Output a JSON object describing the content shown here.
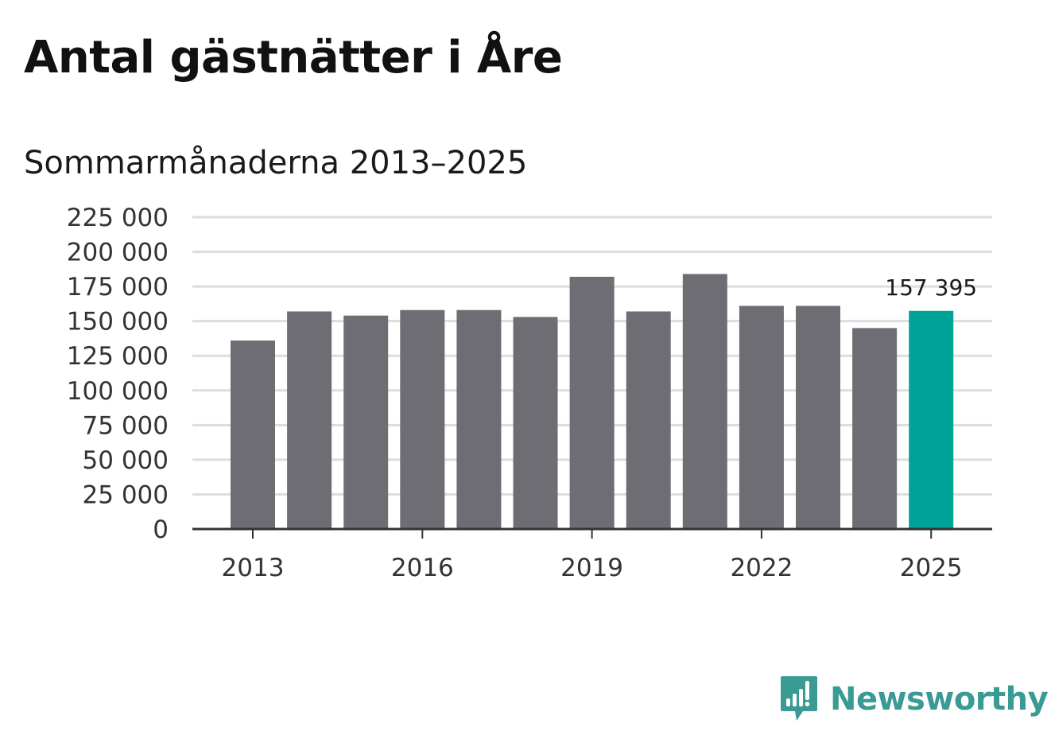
{
  "title": "Antal gästnätter i Åre",
  "subtitle": "Sommarmånaderna 2013–2025",
  "brand": {
    "name": "Newsworthy",
    "icon": "newsworthy-logo-icon",
    "color": "#3a9a94"
  },
  "colors": {
    "bar": "#6d6d73",
    "highlight": "#00a397",
    "grid": "#dddddd",
    "axis": "#333333"
  },
  "chart_data": {
    "type": "bar",
    "title": "Antal gästnätter i Åre",
    "subtitle": "Sommarmånaderna 2013–2025",
    "xlabel": "",
    "ylabel": "",
    "categories": [
      "2013",
      "2014",
      "2015",
      "2016",
      "2017",
      "2018",
      "2019",
      "2020",
      "2021",
      "2022",
      "2023",
      "2024",
      "2025"
    ],
    "values": [
      136000,
      157000,
      154000,
      158000,
      158000,
      153000,
      182000,
      157000,
      184000,
      161000,
      161000,
      145000,
      157395
    ],
    "highlight_index": 12,
    "highlight_label": "157 395",
    "ylim": [
      0,
      225000
    ],
    "yticks": [
      0,
      25000,
      50000,
      75000,
      100000,
      125000,
      150000,
      175000,
      200000,
      225000
    ],
    "ytick_labels": [
      "0",
      "25 000",
      "50 000",
      "75 000",
      "100 000",
      "125 000",
      "150 000",
      "175 000",
      "200 000",
      "225 000"
    ],
    "xtick_labels": [
      "2013",
      "2016",
      "2019",
      "2022",
      "2025"
    ],
    "grid": true,
    "legend": "none"
  }
}
